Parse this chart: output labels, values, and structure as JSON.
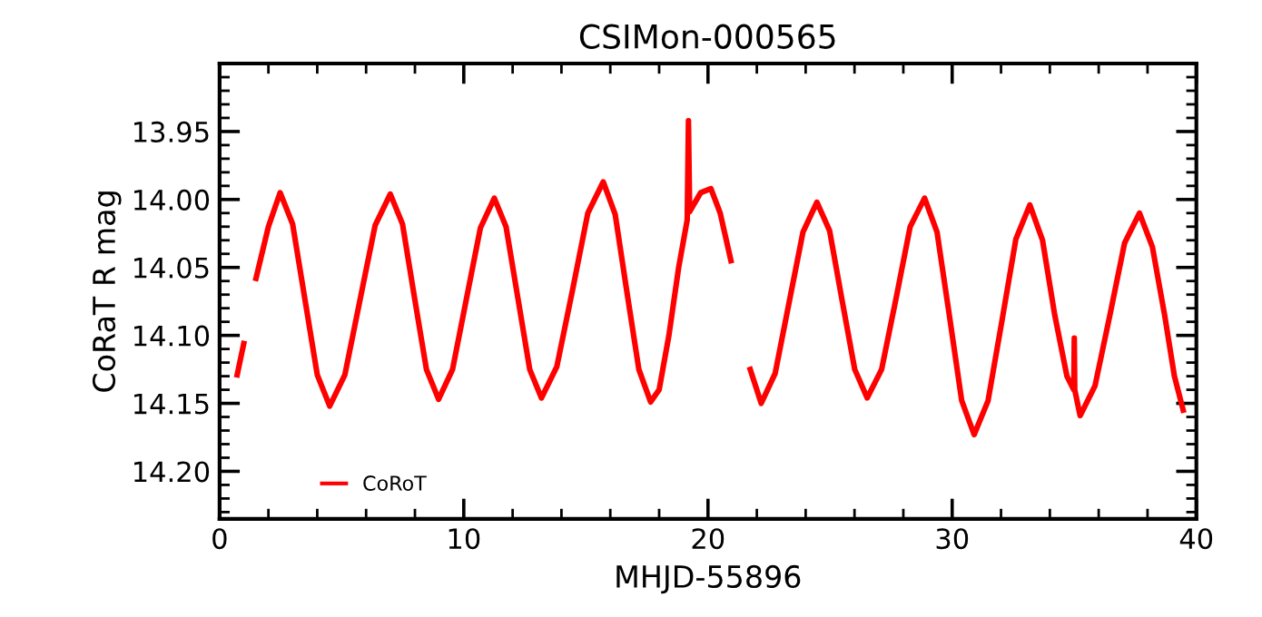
{
  "chart_data": {
    "type": "line",
    "title": "CSIMon-000565",
    "xlabel": "MHJD-55896",
    "ylabel": "CoRaT R mag",
    "xlim": [
      0,
      40
    ],
    "xticks": [
      0,
      10,
      20,
      30,
      40
    ],
    "ylim": [
      14.235,
      13.9
    ],
    "yticks": [
      13.95,
      "14.00",
      14.05,
      "14.10",
      14.15,
      "14.20"
    ],
    "legend": "bottom left",
    "marker": "none",
    "line_style": "solid",
    "grid": false,
    "series": [
      {
        "name": "CoRoT",
        "color": "#ff0000",
        "x": [
          0.72,
          0.99,
          null,
          1.49,
          2.0,
          2.48,
          2.99,
          3.5,
          4.0,
          4.51,
          5.13,
          5.75,
          6.37,
          6.99,
          7.49,
          7.98,
          8.47,
          8.97,
          9.54,
          10.11,
          10.68,
          11.25,
          11.73,
          12.22,
          12.7,
          13.18,
          13.81,
          14.45,
          15.08,
          15.71,
          16.2,
          16.68,
          17.17,
          17.65,
          18.0,
          18.4,
          18.8,
          19.15,
          19.2,
          19.25,
          19.7,
          20.12,
          20.5,
          20.94,
          null,
          21.73,
          22.18,
          22.75,
          23.32,
          23.89,
          24.46,
          24.98,
          25.49,
          26.01,
          26.52,
          27.11,
          27.7,
          28.28,
          28.87,
          29.38,
          29.89,
          30.39,
          30.9,
          31.47,
          32.04,
          32.61,
          33.18,
          33.7,
          34.2,
          34.7,
          34.98,
          35.0,
          35.02,
          35.24,
          35.85,
          36.46,
          37.06,
          37.67,
          38.2,
          38.7,
          39.1,
          39.46
        ],
        "values": [
          14.129,
          14.106,
          null,
          14.058,
          14.02,
          13.995,
          14.018,
          14.074,
          14.129,
          14.152,
          14.129,
          14.074,
          14.019,
          13.996,
          14.018,
          14.072,
          14.125,
          14.147,
          14.125,
          14.073,
          14.021,
          13.999,
          14.02,
          14.073,
          14.125,
          14.146,
          14.123,
          14.067,
          14.01,
          13.987,
          14.011,
          14.068,
          14.125,
          14.149,
          14.14,
          14.1,
          14.05,
          14.015,
          13.942,
          14.009,
          13.995,
          13.992,
          14.01,
          14.045,
          null,
          14.125,
          14.15,
          14.128,
          14.076,
          14.024,
          14.002,
          14.023,
          14.074,
          14.125,
          14.146,
          14.125,
          14.073,
          14.02,
          13.999,
          14.024,
          14.086,
          14.148,
          14.173,
          14.148,
          14.089,
          14.029,
          14.004,
          14.03,
          14.085,
          14.13,
          14.14,
          14.102,
          14.14,
          14.159,
          14.137,
          14.085,
          14.032,
          14.01,
          14.035,
          14.085,
          14.13,
          14.155
        ]
      }
    ]
  }
}
